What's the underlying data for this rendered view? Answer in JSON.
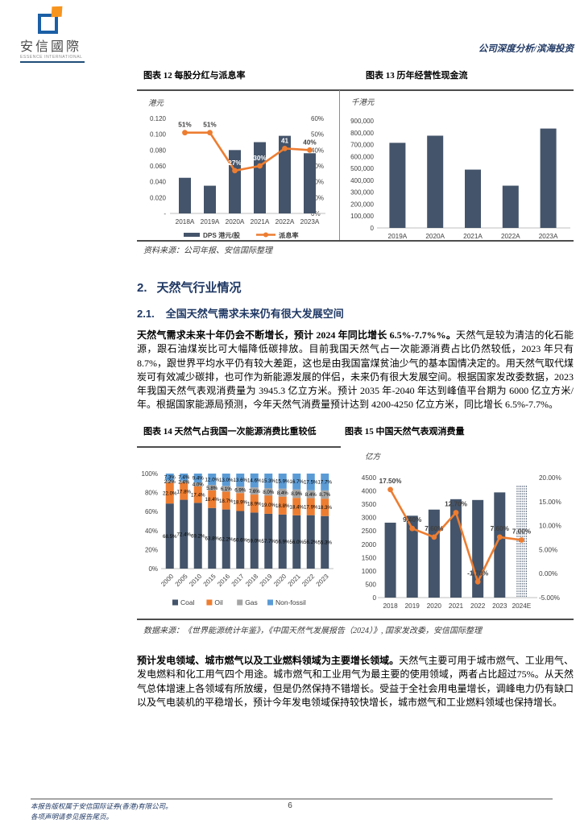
{
  "colors": {
    "bar_navy": "#44546A",
    "line_orange": "#ED7D31",
    "gas_gray": "#A5A5A5",
    "nonfossil_blue": "#5B9BD5",
    "heading_navy": "#1F3864",
    "axis_text": "#404040",
    "axis_line": "#BFBFBF"
  },
  "header": {
    "logo_text": "安信國際",
    "logo_subtext": "ESSENCE INTERNATIONAL",
    "doc_type": "公司深度分析/滨海投资"
  },
  "section": {
    "h2_num": "2.",
    "h2_text": "天然气行业情况",
    "h3_num": "2.1.",
    "h3_text": "全国天然气需求未来仍有很大发展空间"
  },
  "paragraphs": {
    "p1_lead": "天然气需求未来十年仍会不断增长，预计 2024 年同比增长 6.5%-7.7%%。",
    "p1_rest": "天然气是较为清洁的化石能源，跟石油煤炭比可大幅降低碳排放。目前我国天然气占一次能源消费占比仍然较低，2023 年只有 8.7%，跟世界平均水平仍有较大差距，这也是由我国富煤贫油少气的基本国情决定的。用天然气取代煤炭可有效减少碳排，也可作为新能源发展的伴侣，未来仍有很大发展空间。根据国家发改委数据，2023 年我国天然气表观消费量为 3945.3 亿立方米。预计 2035 年-2040 年达到峰值平台期为 6000 亿立方米/年。根据国家能源局预测，今年天然气消费量预计达到 4200-4250 亿立方米，同比增长 6.5%-7.7%。",
    "p2_lead": "预计发电领域、城市燃气以及工业燃料领域为主要增长领域。",
    "p2_rest": "天然气主要可用于城市燃气、工业用气、发电燃料和化工用气四个用途。城市燃气和工业用气为最主要的使用领域，两者占比超过75%。从天然气总体增速上各领域有所放缓，但是仍然保持不错增长。受益于全社会用电量增长，调峰电力仍有缺口以及气电装机的平稳增长，预计今年发电领域保持较快增长，城市燃气和工业燃料领域也保持增长。"
  },
  "sources": {
    "top": "资料来源：公司年报、安信国际整理",
    "bottom": "数据来源：《世界能源统计年鉴》，《中国天然气发展报告（2024）》, 国家发改委，安信国际整理"
  },
  "footer": {
    "line1": "本报告版权属于安信国际证券(香港)有限公司。",
    "line2": "各项声明请参见报告尾页。",
    "page_number": "6"
  },
  "chart_data": [
    {
      "id": "fig12",
      "type": "bar+line",
      "title": "图表 12 每股分红与派息率",
      "unit_label": "港元",
      "categories": [
        "2018A",
        "2019A",
        "2020A",
        "2021A",
        "2022A",
        "2023A"
      ],
      "series": [
        {
          "name": "DPS 港元/股",
          "type": "bar",
          "axis": "left",
          "values": [
            0.045,
            0.035,
            0.08,
            0.09,
            0.098,
            0.076
          ]
        },
        {
          "name": "派息率",
          "type": "line",
          "axis": "right",
          "values": [
            51,
            51,
            27,
            30,
            41,
            40
          ],
          "labels": [
            "51%",
            "51%",
            "27%",
            "30%",
            "41",
            "40%"
          ],
          "label_colors": [
            "dark",
            "dark",
            "white",
            "white",
            "white",
            "dark"
          ]
        }
      ],
      "left_axis": {
        "ticks": [
          "0.120",
          "0.100",
          "0.080",
          "0.060",
          "0.040",
          "0.020",
          "-"
        ],
        "min": 0,
        "max": 0.12
      },
      "right_axis": {
        "ticks": [
          "60%",
          "50%",
          "40%",
          "30%",
          "20%",
          "10%",
          "0%"
        ],
        "min": 0,
        "max": 60
      },
      "legend": [
        "DPS 港元/股",
        "派息率"
      ],
      "grid": false
    },
    {
      "id": "fig13",
      "type": "bar",
      "title": "图表 13 历年经营性现金流",
      "unit_label": "千港元",
      "categories": [
        "2019A",
        "2020A",
        "2021A",
        "2022A",
        "2023A"
      ],
      "values": [
        715000,
        775000,
        490000,
        355000,
        835000
      ],
      "y_ticks": [
        "900,000",
        "800,000",
        "700,000",
        "600,000",
        "500,000",
        "400,000",
        "300,000",
        "200,000",
        "100,000",
        "0"
      ],
      "ylim": [
        0,
        900000
      ],
      "grid": false
    },
    {
      "id": "fig14",
      "type": "stacked-bar-100",
      "title": "图表 14 天然气占我国一次能源消费比重较低",
      "categories": [
        "2000",
        "2005",
        "2010",
        "2015",
        "2016",
        "2017",
        "2018",
        "2019",
        "2020",
        "2021",
        "2022",
        "2023"
      ],
      "series": [
        {
          "name": "Coal",
          "color": "#44546A",
          "values": [
            68.5,
            72.4,
            69.2,
            63.8,
            62.2,
            60.6,
            59.0,
            57.7,
            56.9,
            56.0,
            56.2,
            55.3
          ]
        },
        {
          "name": "Oil",
          "color": "#ED7D31",
          "values": [
            22.0,
            17.8,
            17.4,
            18.4,
            18.7,
            18.9,
            18.9,
            19.0,
            18.8,
            18.4,
            17.9,
            18.3
          ]
        },
        {
          "name": "Gas",
          "color": "#A5A5A5",
          "values": [
            2.2,
            2.4,
            4.0,
            5.8,
            6.1,
            6.9,
            7.6,
            8.0,
            8.4,
            8.9,
            8.4,
            8.7
          ]
        },
        {
          "name": "Non-fossil",
          "color": "#5B9BD5",
          "values": [
            7.3,
            7.4,
            9.4,
            12.0,
            13.0,
            13.6,
            14.6,
            15.3,
            15.9,
            16.7,
            17.5,
            17.7
          ]
        }
      ],
      "y_ticks": [
        "100%",
        "80%",
        "60%",
        "40%",
        "20%",
        "0%"
      ],
      "ylim": [
        0,
        100
      ],
      "legend_position": "bottom",
      "grid": false
    },
    {
      "id": "fig15",
      "type": "bar+line",
      "title": "图表 15 中国天然气表观消费量",
      "unit_label": "亿方",
      "categories": [
        "2018",
        "2019",
        "2020",
        "2021",
        "2022",
        "2023",
        "2024E"
      ],
      "bars": [
        2810,
        3070,
        3300,
        3690,
        3660,
        3945,
        4225
      ],
      "bar_styles": [
        "solid",
        "solid",
        "solid",
        "solid",
        "solid",
        "solid",
        "hatched"
      ],
      "line": [
        17.5,
        9.4,
        7.6,
        12.7,
        -1.7,
        7.6,
        7.0
      ],
      "line_labels": [
        "17.50%",
        "9.40%",
        "7.60%",
        "12.70%",
        "-1.70%",
        "7.60%",
        "7.00%"
      ],
      "left_ticks": [
        "4500",
        "4000",
        "3500",
        "3000",
        "2500",
        "2000",
        "1500",
        "1000",
        "500",
        "0"
      ],
      "right_ticks": [
        "20.00%",
        "15.00%",
        "10.00%",
        "5.00%",
        "0.00%",
        "-5.00%"
      ],
      "left_lim": [
        0,
        4500
      ],
      "right_lim": [
        -5,
        20
      ],
      "grid": false
    }
  ]
}
